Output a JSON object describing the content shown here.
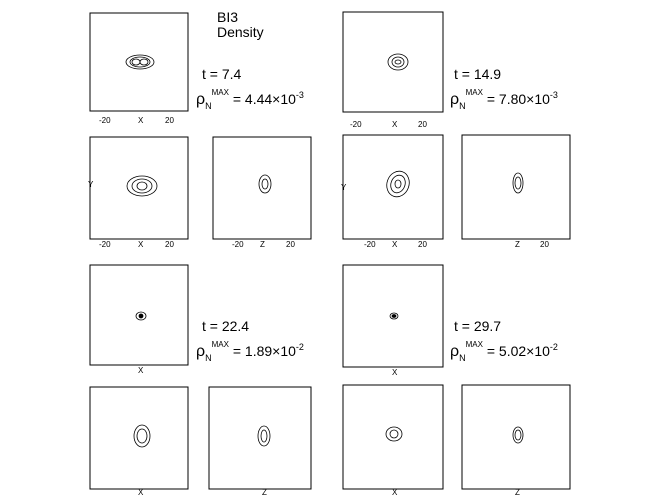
{
  "title": {
    "line1": "BI3",
    "line2": "Density"
  },
  "groups": [
    {
      "time": "t = 7.4",
      "rho_mantissa": "4.44",
      "rho_exp": "-3"
    },
    {
      "time": "t = 14.9",
      "rho_mantissa": "7.80",
      "rho_exp": "-3"
    },
    {
      "time": "t = 22.4",
      "rho_mantissa": "1.89",
      "rho_exp": "-2"
    },
    {
      "time": "t = 29.7",
      "rho_mantissa": "5.02",
      "rho_exp": "-2"
    }
  ],
  "symbol": {
    "rho": "ρ",
    "sub": "N",
    "sup": "MAX",
    "times_ten": "×10"
  },
  "axis_labels": {
    "x": "X",
    "y": "Y",
    "z": "Z"
  },
  "ticks": {
    "neg": "-20",
    "pos": "20"
  }
}
